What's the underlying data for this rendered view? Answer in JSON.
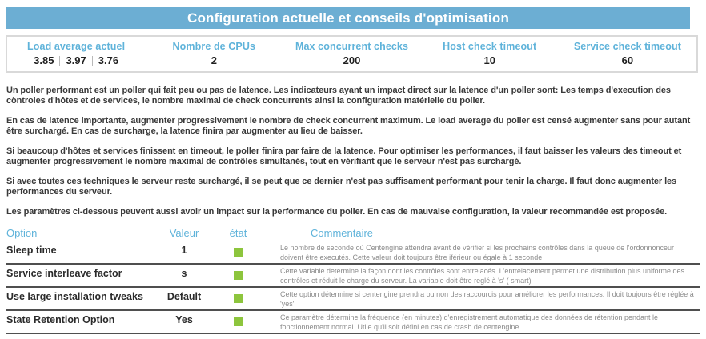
{
  "title": "Configuration actuelle et conseils d'optimisation",
  "summary": {
    "cards": [
      {
        "label": "Load average actuel",
        "values": [
          "3.85",
          "3.97",
          "3.76"
        ]
      },
      {
        "label": "Nombre de CPUs",
        "value": "2"
      },
      {
        "label": "Max concurrent checks",
        "value": "200"
      },
      {
        "label": "Host check timeout",
        "value": "10"
      },
      {
        "label": "Service check timeout",
        "value": "60"
      }
    ]
  },
  "paragraphs": [
    "Un poller performant est un poller qui fait peu ou pas de latence. Les indicateurs ayant un impact direct sur la latence d'un poller sont: Les temps d'execution des còntroles d'hôtes et de services, le nombre maximal de check concurrents ainsi la configuration matérielle du poller.",
    "En cas de latence importante, augmenter progressivement le nombre de check concurrent maximum. Le load average du poller est censé augmenter sans pour autant être surchargé. En cas de surcharge, la latence finira par augmenter au lieu de baisser.",
    "Si beaucoup d'hôtes et services finissent en timeout, le poller finira par faire de la latence. Pour optimiser les performances, il faut baisser les valeurs des timeout et augmenter progressivement le nombre maximal de contrôles simultanés, tout en vérifiant que le serveur n'est pas surchargé.",
    "Si avec toutes ces techniques le serveur reste surchargé, il se peut que ce dernier n'est pas suffisament performant pour tenir la charge. Il faut donc augmenter les performances du serveur.",
    "Les paramètres ci-dessous peuvent aussi avoir un impact sur la performance du poller. En cas de mauvaise configuration, la valeur recommandée est proposée."
  ],
  "table": {
    "headers": {
      "option": "Option",
      "value": "Valeur",
      "status": "état",
      "comment": "Commentaire"
    },
    "rows": [
      {
        "option": "Sleep time",
        "value": "1",
        "status": "ok",
        "comment": "Le nombre de seconde où Centengine attendra avant de vérifier si les prochains contrôles dans la queue de l'ordonnonceur doivent être executés. Cette valeur doit toujours être iférieur ou égale à 1 seconde"
      },
      {
        "option": "Service interleave factor",
        "value": "s",
        "status": "ok",
        "comment": "Cette variable determine la façon dont les contrôles sont entrelacés. L'entrelacement permet une distribution plus uniforme des contrôles et réduit le charge du serveur. La variable doit être reglé à 's' ( smart)"
      },
      {
        "option": "Use large installation tweaks",
        "value": "Default",
        "status": "ok",
        "comment": "Cette option détermine si centengine prendra ou non des raccourcis pour améliorer les performances. Il doit toujours être réglée à 'yes'"
      },
      {
        "option": "State Retention Option",
        "value": "Yes",
        "status": "ok",
        "comment": "Ce paramètre détermine la fréquence (en minutes) d'enregistrement automatique des données de rétention pendant le fonctionnement normal. Utile qu'il soit défini en cas de crash de centengine."
      }
    ]
  },
  "colors": {
    "title_bar_bg": "#6caed3",
    "accent_blue": "#5fb3da",
    "status_ok_green": "#8dc53d",
    "row_border": "#4f4f4f"
  }
}
